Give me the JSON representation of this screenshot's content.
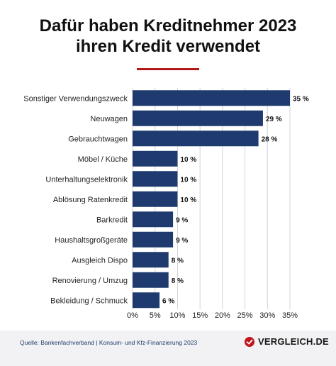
{
  "title_line1": "Dafür haben Kreditnehmer 2023",
  "title_line2": "ihren Kredit verwendet",
  "colors": {
    "bar": "#1f3a6e",
    "accent": "#b01a1a",
    "grid": "#cfd3dc"
  },
  "chart_data": {
    "type": "bar",
    "orientation": "horizontal",
    "categories": [
      "Sonstiger Verwendungszweck",
      "Neuwagen",
      "Gebrauchtwagen",
      "Möbel / Küche",
      "Unterhaltungselektronik",
      "Ablösung Ratenkredit",
      "Barkredit",
      "Haushaltsgroßgeräte",
      "Ausgleich Dispo",
      "Renovierung / Umzug",
      "Bekleidung / Schmuck"
    ],
    "values": [
      35,
      29,
      28,
      10,
      10,
      10,
      9,
      9,
      8,
      8,
      6
    ],
    "value_labels": [
      "35 %",
      "29 %",
      "28 %",
      "10 %",
      "10 %",
      "10 %",
      "9 %",
      "9 %",
      "8 %",
      "8 %",
      "6 %"
    ],
    "xlim": [
      0,
      35
    ],
    "xticks": [
      0,
      5,
      10,
      15,
      20,
      25,
      30,
      35
    ],
    "xtick_labels": [
      "0%",
      "5%",
      "10%",
      "15%",
      "20%",
      "25%",
      "30%",
      "35%"
    ],
    "grid": true
  },
  "footer": {
    "source": "Quelle: Bankenfachverband | Konsum- und Kfz-Finanzierung 2023",
    "brand": "VERGLEICH.DE",
    "brand_icon": "check-badge-icon"
  }
}
